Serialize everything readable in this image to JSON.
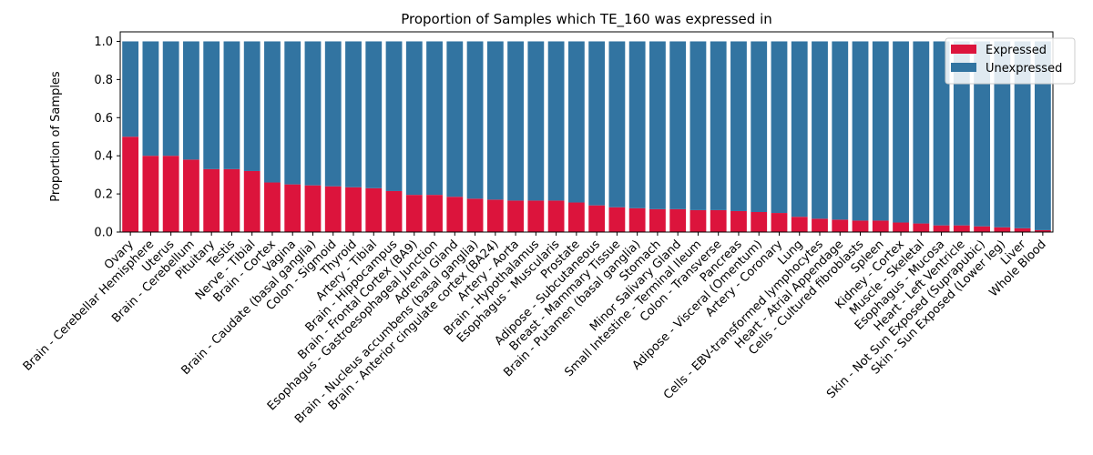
{
  "chart_data": {
    "type": "bar",
    "stacked": true,
    "title": "Proportion of Samples which TE_160 was expressed in",
    "xlabel": "",
    "ylabel": "Proportion of Samples",
    "ylim": [
      0,
      1.05
    ],
    "yticks": [
      "0.0",
      "0.2",
      "0.4",
      "0.6",
      "0.8",
      "1.0"
    ],
    "grid": false,
    "legend_position": "top-right",
    "categories": [
      "Ovary",
      "Brain - Cerebellar Hemisphere",
      "Uterus",
      "Brain - Cerebellum",
      "Pituitary",
      "Testis",
      "Nerve - Tibial",
      "Brain - Cortex",
      "Vagina",
      "Brain - Caudate (basal ganglia)",
      "Colon - Sigmoid",
      "Thyroid",
      "Artery - Tibial",
      "Brain - Hippocampus",
      "Brain - Frontal Cortex (BA9)",
      "Esophagus - Gastroesophageal Junction",
      "Adrenal Gland",
      "Brain - Nucleus accumbens (basal ganglia)",
      "Brain - Anterior cingulate cortex (BA24)",
      "Artery - Aorta",
      "Brain - Hypothalamus",
      "Esophagus - Muscularis",
      "Prostate",
      "Adipose - Subcutaneous",
      "Breast - Mammary Tissue",
      "Brain - Putamen (basal ganglia)",
      "Stomach",
      "Minor Salivary Gland",
      "Small Intestine - Terminal Ileum",
      "Colon - Transverse",
      "Pancreas",
      "Adipose - Visceral (Omentum)",
      "Artery - Coronary",
      "Lung",
      "Cells - EBV-transformed lymphocytes",
      "Heart - Atrial Appendage",
      "Cells - Cultured fibroblasts",
      "Spleen",
      "Kidney - Cortex",
      "Muscle - Skeletal",
      "Esophagus - Mucosa",
      "Heart - Left Ventricle",
      "Skin - Not Sun Exposed (Suprapubic)",
      "Skin - Sun Exposed (Lower leg)",
      "Liver",
      "Whole Blood"
    ],
    "series": [
      {
        "name": "Expressed",
        "color": "#dc143c",
        "values": [
          0.5,
          0.4,
          0.4,
          0.38,
          0.33,
          0.33,
          0.32,
          0.26,
          0.25,
          0.245,
          0.24,
          0.235,
          0.23,
          0.215,
          0.195,
          0.195,
          0.185,
          0.175,
          0.17,
          0.165,
          0.165,
          0.165,
          0.155,
          0.14,
          0.13,
          0.125,
          0.12,
          0.12,
          0.115,
          0.115,
          0.11,
          0.105,
          0.1,
          0.08,
          0.07,
          0.065,
          0.06,
          0.06,
          0.05,
          0.045,
          0.035,
          0.035,
          0.03,
          0.025,
          0.02,
          0.01
        ]
      },
      {
        "name": "Unexpressed",
        "color": "#3274a1",
        "values": [
          0.5,
          0.6,
          0.6,
          0.62,
          0.67,
          0.67,
          0.68,
          0.74,
          0.75,
          0.755,
          0.76,
          0.765,
          0.77,
          0.785,
          0.805,
          0.805,
          0.815,
          0.825,
          0.83,
          0.835,
          0.835,
          0.835,
          0.845,
          0.86,
          0.87,
          0.875,
          0.88,
          0.88,
          0.885,
          0.885,
          0.89,
          0.895,
          0.9,
          0.92,
          0.93,
          0.935,
          0.94,
          0.94,
          0.95,
          0.955,
          0.965,
          0.965,
          0.97,
          0.975,
          0.98,
          0.99
        ]
      }
    ]
  }
}
